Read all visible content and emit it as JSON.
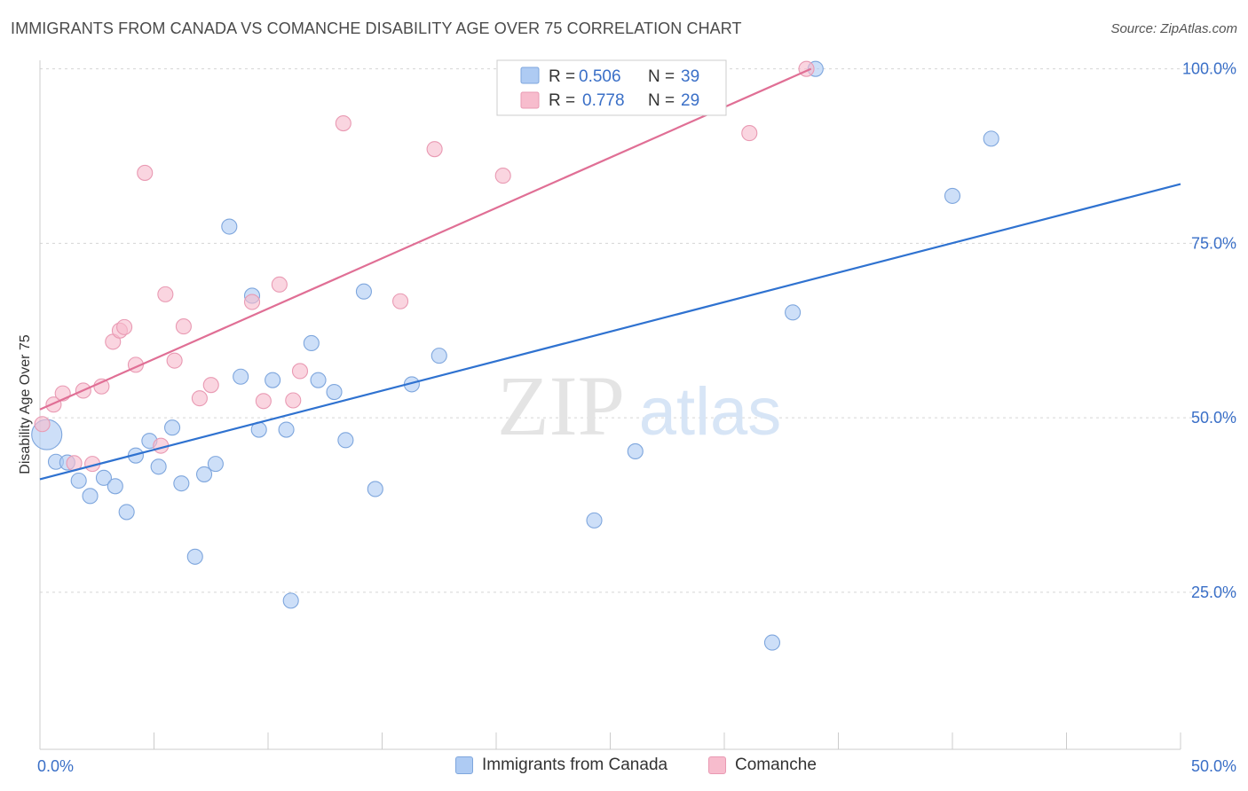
{
  "header": {
    "title": "IMMIGRANTS FROM CANADA VS COMANCHE DISABILITY AGE OVER 75 CORRELATION CHART",
    "source": "Source: ZipAtlas.com"
  },
  "watermark": {
    "zip": "ZIP",
    "atlas": "atlas"
  },
  "stats": {
    "r_label": "R =",
    "n_label": "N =",
    "series1": {
      "r": "0.506",
      "n": "39"
    },
    "series2": {
      "r": "0.778",
      "n": "29"
    }
  },
  "colors": {
    "blue_fill": "#aecbf3",
    "blue_stroke": "#7ea6dd",
    "blue_line": "#2f72d0",
    "pink_fill": "#f7bccd",
    "pink_stroke": "#e99ab3",
    "pink_line": "#e06f95",
    "value_text": "#3a6fc7",
    "grid": "#d5d5d5"
  },
  "chart_data": {
    "type": "scatter",
    "title": "IMMIGRANTS FROM CANADA VS COMANCHE DISABILITY AGE OVER 75 CORRELATION CHART",
    "xlabel": "",
    "ylabel": "Disability Age Over 75",
    "xlim": [
      0,
      50
    ],
    "ylim": [
      2.5,
      102.5
    ],
    "x_ticks": [
      0,
      50
    ],
    "x_tick_labels": [
      "0.0%",
      "50.0%"
    ],
    "y_ticks": [
      25,
      50,
      75,
      100
    ],
    "y_tick_labels": [
      "25.0%",
      "50.0%",
      "75.0%",
      "100.0%"
    ],
    "grid": true,
    "legend_position": "bottom",
    "series": [
      {
        "name": "Immigrants from Canada",
        "color": "#aecbf3",
        "trend": [
          [
            0,
            41.2
          ],
          [
            50,
            83.5
          ]
        ],
        "points": [
          {
            "x": 0.3,
            "y": 47.6,
            "big": true
          },
          {
            "x": 0.7,
            "y": 43.7
          },
          {
            "x": 1.2,
            "y": 43.6
          },
          {
            "x": 1.7,
            "y": 41.0
          },
          {
            "x": 2.2,
            "y": 38.8
          },
          {
            "x": 2.8,
            "y": 41.4
          },
          {
            "x": 3.3,
            "y": 40.2
          },
          {
            "x": 3.8,
            "y": 36.5
          },
          {
            "x": 4.2,
            "y": 44.6
          },
          {
            "x": 4.8,
            "y": 46.7
          },
          {
            "x": 5.2,
            "y": 43.0
          },
          {
            "x": 5.8,
            "y": 48.6
          },
          {
            "x": 6.2,
            "y": 40.6
          },
          {
            "x": 6.8,
            "y": 30.1
          },
          {
            "x": 7.2,
            "y": 41.9
          },
          {
            "x": 7.7,
            "y": 43.4
          },
          {
            "x": 8.3,
            "y": 77.4
          },
          {
            "x": 8.8,
            "y": 55.9
          },
          {
            "x": 9.3,
            "y": 67.5
          },
          {
            "x": 9.6,
            "y": 48.3
          },
          {
            "x": 10.2,
            "y": 55.4
          },
          {
            "x": 10.8,
            "y": 48.3
          },
          {
            "x": 11.0,
            "y": 23.8
          },
          {
            "x": 11.9,
            "y": 60.7
          },
          {
            "x": 12.2,
            "y": 55.4
          },
          {
            "x": 12.9,
            "y": 53.7
          },
          {
            "x": 13.4,
            "y": 46.8
          },
          {
            "x": 14.2,
            "y": 68.1
          },
          {
            "x": 14.7,
            "y": 39.8
          },
          {
            "x": 16.3,
            "y": 54.8
          },
          {
            "x": 17.5,
            "y": 58.9
          },
          {
            "x": 20.6,
            "y": 100.0
          },
          {
            "x": 24.3,
            "y": 35.3
          },
          {
            "x": 26.1,
            "y": 45.2
          },
          {
            "x": 32.1,
            "y": 17.8
          },
          {
            "x": 33.0,
            "y": 65.1
          },
          {
            "x": 34.0,
            "y": 100.0
          },
          {
            "x": 40.0,
            "y": 81.8
          },
          {
            "x": 41.7,
            "y": 90.0
          }
        ]
      },
      {
        "name": "Comanche",
        "color": "#f7bccd",
        "trend": [
          [
            0,
            51.2
          ],
          [
            33.8,
            100.0
          ]
        ],
        "points": [
          {
            "x": 0.1,
            "y": 49.1
          },
          {
            "x": 0.6,
            "y": 51.9
          },
          {
            "x": 1.0,
            "y": 53.5
          },
          {
            "x": 1.5,
            "y": 43.5
          },
          {
            "x": 1.9,
            "y": 53.9
          },
          {
            "x": 2.3,
            "y": 43.4
          },
          {
            "x": 2.7,
            "y": 54.5
          },
          {
            "x": 3.2,
            "y": 60.9
          },
          {
            "x": 3.5,
            "y": 62.5
          },
          {
            "x": 3.7,
            "y": 63.0
          },
          {
            "x": 4.2,
            "y": 57.6
          },
          {
            "x": 4.6,
            "y": 85.1
          },
          {
            "x": 5.3,
            "y": 46.0
          },
          {
            "x": 5.5,
            "y": 67.7
          },
          {
            "x": 5.9,
            "y": 58.2
          },
          {
            "x": 6.3,
            "y": 63.1
          },
          {
            "x": 7.0,
            "y": 52.8
          },
          {
            "x": 7.5,
            "y": 54.7
          },
          {
            "x": 9.3,
            "y": 66.6
          },
          {
            "x": 9.8,
            "y": 52.4
          },
          {
            "x": 10.5,
            "y": 69.1
          },
          {
            "x": 11.1,
            "y": 52.5
          },
          {
            "x": 11.4,
            "y": 56.7
          },
          {
            "x": 13.3,
            "y": 92.2
          },
          {
            "x": 15.8,
            "y": 66.7
          },
          {
            "x": 17.3,
            "y": 88.5
          },
          {
            "x": 20.3,
            "y": 84.7
          },
          {
            "x": 31.1,
            "y": 90.8
          },
          {
            "x": 33.6,
            "y": 100.0
          }
        ]
      }
    ]
  }
}
